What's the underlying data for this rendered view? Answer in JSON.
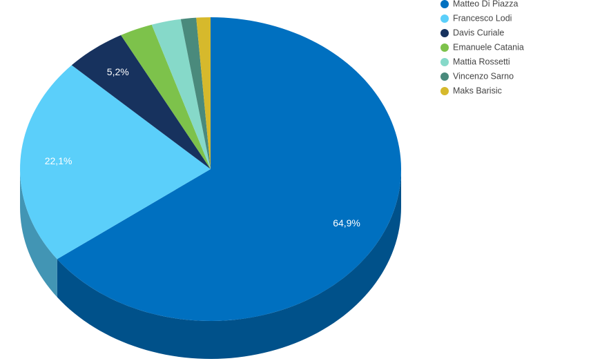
{
  "chart_data": {
    "type": "pie3d",
    "categories": [
      "Matteo Di Piazza",
      "Francesco Lodi",
      "Davis Curiale",
      "Emanuele Catania",
      "Mattia Rossetti",
      "Vincenzo Sarno",
      "Maks Barisic"
    ],
    "values": [
      64.9,
      22.1,
      5.2,
      2.8,
      2.5,
      1.3,
      1.2
    ],
    "value_labels": [
      "64,9%",
      "22,1%",
      "5,2%",
      null,
      null,
      null,
      null
    ],
    "colors": [
      "#0070c0",
      "#5bcffa",
      "#17325e",
      "#7dc24b",
      "#86d9c9",
      "#4a8a7c",
      "#d6b92c"
    ],
    "legend": "top-right"
  }
}
